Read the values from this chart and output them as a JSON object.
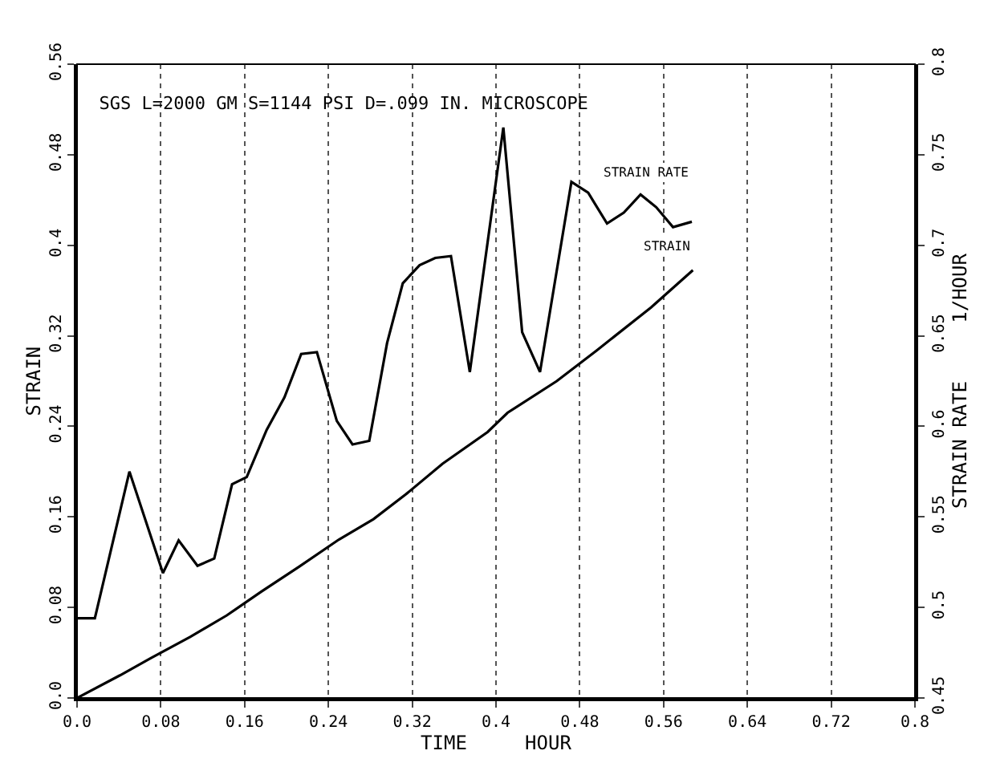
{
  "chart_data": {
    "type": "line",
    "title": "SGS L=2000 GM S=1144 PSI D=.099 IN. MICROSCOPE",
    "xlabel": "TIME     HOUR",
    "ylabel": "STRAIN",
    "y2label": "STRAIN RATE     1/HOUR",
    "xlim": [
      0,
      0.8
    ],
    "xticks": [
      {
        "value": 0,
        "label": "0.0"
      },
      0.08,
      0.16,
      0.24,
      0.32,
      0.4,
      0.48,
      0.56,
      0.64,
      0.72,
      0.8
    ],
    "ylim": [
      0,
      0.56
    ],
    "yticks": [
      {
        "value": 0,
        "label": "0.0"
      },
      0.08,
      0.16,
      0.24,
      0.32,
      0.4,
      0.48,
      0.56
    ],
    "y2lim": [
      0.45,
      0.8
    ],
    "y2ticks": [
      0.45,
      0.5,
      0.55,
      0.6,
      0.65,
      0.7,
      0.75,
      0.8
    ],
    "grid": "x",
    "legend": false,
    "marker": "none",
    "line_style": "solid",
    "series": [
      {
        "name": "STRAIN RATE",
        "axis": "y2",
        "color": "#000000",
        "x": [
          0,
          0.017,
          0.05,
          0.082,
          0.097,
          0.115,
          0.131,
          0.148,
          0.162,
          0.181,
          0.198,
          0.214,
          0.229,
          0.248,
          0.263,
          0.279,
          0.296,
          0.311,
          0.327,
          0.342,
          0.357,
          0.375,
          0.407,
          0.425,
          0.442,
          0.472,
          0.488,
          0.506,
          0.522,
          0.538,
          0.553,
          0.569,
          0.587
        ],
        "values": [
          0.494,
          0.494,
          0.575,
          0.519,
          0.537,
          0.523,
          0.527,
          0.568,
          0.572,
          0.598,
          0.616,
          0.64,
          0.641,
          0.603,
          0.59,
          0.592,
          0.646,
          0.679,
          0.689,
          0.693,
          0.694,
          0.63,
          0.765,
          0.652,
          0.63,
          0.735,
          0.729,
          0.712,
          0.718,
          0.728,
          0.721,
          0.71,
          0.713
        ]
      },
      {
        "name": "STRAIN",
        "color": "#000000",
        "x": [
          0,
          0.041,
          0.07,
          0.108,
          0.143,
          0.176,
          0.212,
          0.25,
          0.283,
          0.314,
          0.349,
          0.392,
          0.411,
          0.458,
          0.496,
          0.548,
          0.588
        ],
        "values": [
          0,
          0.02,
          0.035,
          0.054,
          0.073,
          0.094,
          0.116,
          0.14,
          0.158,
          0.18,
          0.207,
          0.235,
          0.252,
          0.28,
          0.307,
          0.345,
          0.378
        ]
      }
    ]
  }
}
